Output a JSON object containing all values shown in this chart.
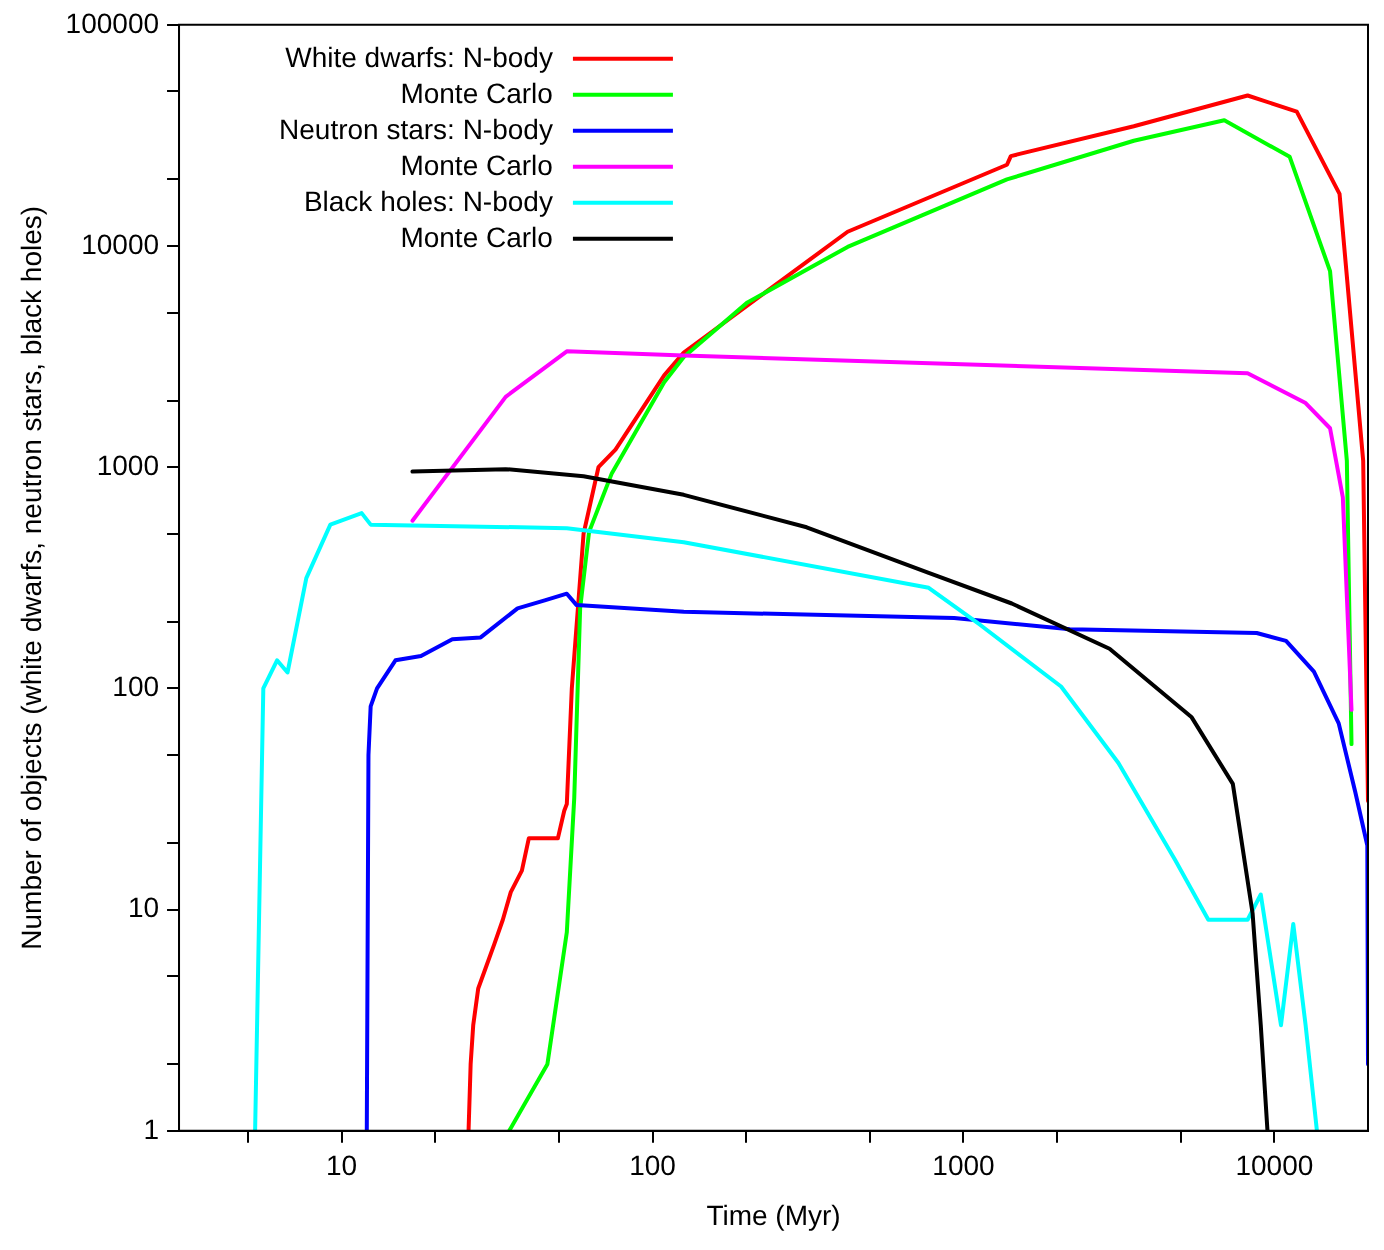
{
  "chart_data": {
    "type": "line",
    "xlabel": "Time (Myr)",
    "ylabel": "Number of objects (white dwarfs, neutron stars, black holes)",
    "log": "xy",
    "legend": "top left",
    "grid": false,
    "marker": "none",
    "line_style": "solid",
    "xlim": [
      3,
      20000
    ],
    "ylim": [
      1,
      100000
    ],
    "xticks": [
      {
        "value": 5,
        "label": null
      },
      10,
      {
        "value": 20,
        "label": null
      },
      {
        "value": 50,
        "label": null
      },
      100,
      {
        "value": 200,
        "label": null
      },
      {
        "value": 500,
        "label": null
      },
      1000,
      {
        "value": 2000,
        "label": null
      },
      {
        "value": 5000,
        "label": null
      },
      10000
    ],
    "yticks": [
      1,
      {
        "value": 2,
        "label": null
      },
      {
        "value": 5,
        "label": null
      },
      10,
      {
        "value": 20,
        "label": null
      },
      {
        "value": 50,
        "label": null
      },
      100,
      {
        "value": 200,
        "label": null
      },
      {
        "value": 500,
        "label": null
      },
      1000,
      {
        "value": 2000,
        "label": null
      },
      {
        "value": 5000,
        "label": null
      },
      10000,
      {
        "value": 20000,
        "label": null
      },
      {
        "value": 50000,
        "label": null
      },
      100000
    ],
    "series": [
      {
        "name": "White dwarfs: N-body",
        "color": "#ff0000",
        "x": [
          25.6,
          26,
          26.5,
          27.5,
          29,
          31,
          33,
          35,
          38,
          40,
          49.6,
          52,
          53,
          55,
          60,
          67,
          76,
          109,
          126,
          424,
          1380,
          1420,
          3530,
          8200,
          11800,
          16200,
          19300,
          20000
        ],
        "values": [
          1,
          2,
          3,
          4.4,
          5.4,
          7,
          9,
          12,
          15,
          21,
          21,
          28,
          30,
          100,
          500,
          1000,
          1200,
          2600,
          3300,
          11600,
          23300,
          25500,
          34800,
          47900,
          40500,
          17200,
          1070,
          31
        ]
      },
      {
        "name": "Monte Carlo",
        "color": "#00ff00",
        "x": [
          34.6,
          45.9,
          53,
          56,
          58.5,
          62.5,
          74,
          109,
          126,
          202,
          424,
          1380,
          3530,
          6900,
          11200,
          15100,
          17100,
          17700
        ],
        "values": [
          1,
          2,
          7.9,
          32,
          230,
          510,
          940,
          2420,
          3150,
          5560,
          9900,
          20000,
          29900,
          37000,
          25300,
          7700,
          1070,
          56
        ]
      },
      {
        "name": "Neutron stars: N-body",
        "color": "#0000ff",
        "x": [
          12.05,
          12.2,
          12.4,
          13,
          14.9,
          18,
          22.7,
          28,
          36.8,
          45,
          53,
          57,
          126,
          933,
          2200,
          8770,
          10900,
          13400,
          16100,
          18200,
          19900,
          20000
        ],
        "values": [
          1,
          50,
          83,
          100,
          134,
          140,
          167,
          170,
          230,
          250,
          268,
          238,
          222,
          208,
          185,
          178,
          164,
          119,
          69.5,
          34,
          19.5,
          2
        ]
      },
      {
        "name": "Monte Carlo",
        "color": "#ff00ff",
        "x": [
          16.9,
          33.7,
          53,
          126,
          8200,
          12600,
          15100,
          16600,
          17700
        ],
        "values": [
          573,
          2080,
          3340,
          3200,
          2660,
          1950,
          1500,
          730,
          80
        ]
      },
      {
        "name": "Black holes: N-body",
        "color": "#00ffff",
        "x": [
          5.27,
          5.6,
          6.2,
          6.7,
          7.7,
          9.2,
          11.6,
          12.4,
          53,
          126,
          773,
          1130,
          2060,
          3150,
          4800,
          6130,
          8200,
          9040,
          10500,
          11500,
          12600,
          13700
        ],
        "values": [
          1,
          100,
          134,
          118,
          315,
          550,
          620,
          550,
          530,
          458,
          285,
          194,
          102,
          46,
          16.7,
          9,
          9,
          11.7,
          3,
          8.6,
          3,
          1
        ]
      },
      {
        "name": "Monte Carlo",
        "color": "#000000",
        "x": [
          16.9,
          33.7,
          60,
          126,
          313,
          773,
          1430,
          2950,
          5420,
          7350,
          8510,
          9040,
          9500
        ],
        "values": [
          955,
          980,
          910,
          750,
          535,
          333,
          242,
          151,
          74,
          37,
          9.6,
          3,
          1
        ]
      }
    ]
  }
}
